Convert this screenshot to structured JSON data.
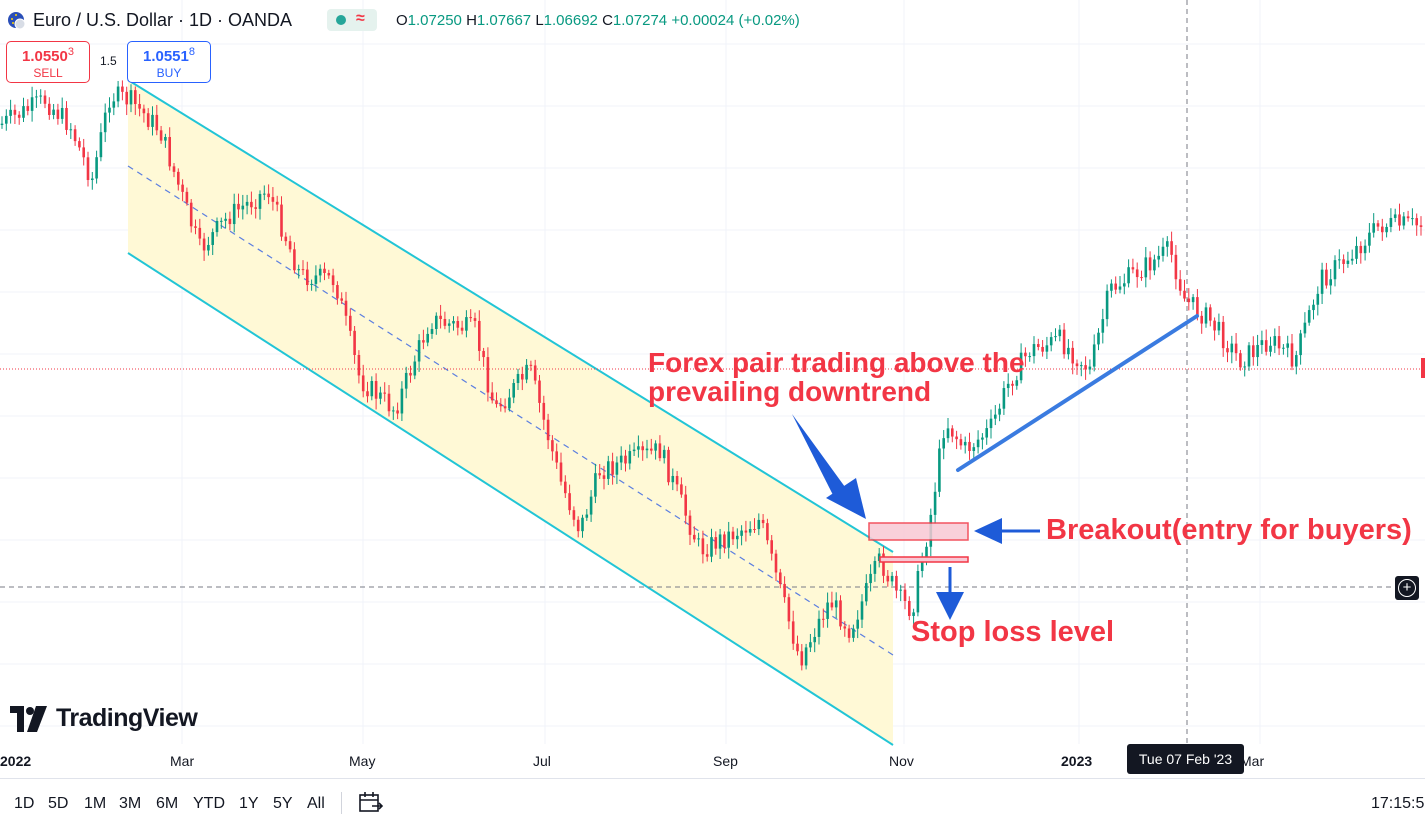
{
  "header": {
    "title": "Euro / U.S. Dollar · 1D · OANDA",
    "ohlc": [
      {
        "key": "O",
        "value": "1.07250"
      },
      {
        "key": "H",
        "value": "1.07667"
      },
      {
        "key": "L",
        "value": "1.06692"
      },
      {
        "key": "C",
        "value": "1.07274"
      }
    ],
    "change": "+0.00024 (+0.02%)",
    "status_icon": "market-open-dot",
    "replay_icon": "approx-wave-icon"
  },
  "trade": {
    "sell_price_main": "1.0550",
    "sell_price_small": "3",
    "sell_label": "SELL",
    "buy_price_main": "1.0551",
    "buy_price_small": "8",
    "buy_label": "BUY",
    "spread": "1.5"
  },
  "brand": {
    "name": "TradingView"
  },
  "xaxis": {
    "labels": [
      "2022",
      "Mar",
      "May",
      "Jul",
      "Sep",
      "Nov",
      "2023",
      "Mar"
    ],
    "crosshair_date": "Tue 07 Feb '23"
  },
  "annotations": {
    "trend_note_line1": "Forex pair trading above the",
    "trend_note_line2": "prevailing downtrend",
    "breakout_note": "Breakout(entry for buyers)",
    "stop_note": "Stop loss level"
  },
  "toolbar": {
    "timeframes": [
      "1D",
      "5D",
      "1M",
      "3M",
      "6M",
      "YTD",
      "1Y",
      "5Y",
      "All"
    ],
    "clock": "17:15:5"
  },
  "colors": {
    "up": "#089981",
    "down": "#f23645",
    "channel": "#22c5d6",
    "channel_fill": "#fff9d6",
    "annotation": "#f23645",
    "arrow": "#1e5bd8"
  },
  "chart_data": {
    "type": "candlestick",
    "title": "Euro / U.S. Dollar · 1D · OANDA",
    "xlabel": "",
    "ylabel": "",
    "x": [
      "2022",
      "Mar",
      "May",
      "Jul",
      "Sep",
      "Nov",
      "2023",
      "Mar"
    ],
    "last_ohlc": {
      "open": 1.0725,
      "high": 1.07667,
      "low": 1.06692,
      "close": 1.07274
    },
    "grid": true,
    "legend": "none"
  }
}
